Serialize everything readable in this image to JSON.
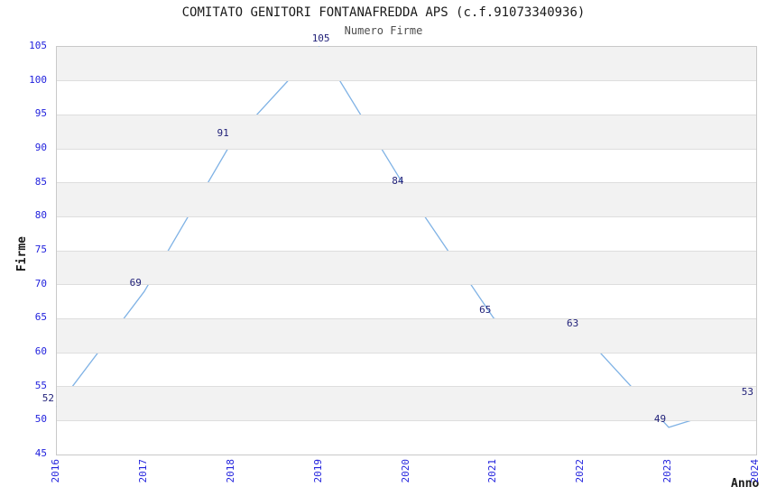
{
  "title": "COMITATO GENITORI FONTANAFREDDA APS (c.f.91073340936)",
  "chart_data": {
    "type": "line",
    "title": "Numero Firme",
    "categories": [
      "2016",
      "2017",
      "2018",
      "2019",
      "2020",
      "2021",
      "2022",
      "2023",
      "2024"
    ],
    "values": [
      52,
      69,
      91,
      105,
      84,
      65,
      63,
      49,
      53
    ],
    "xlabel": "Anno",
    "ylabel": "Firme",
    "ylim": [
      45,
      105
    ],
    "ytick_step": 5,
    "xtick_rotation": 90,
    "grid": "horizontal-stripes-every-5",
    "legend": "none",
    "data_labels": true,
    "colors": {
      "line": "#7fb2e5",
      "tick_label": "#2222dd",
      "data_label": "#1f1f78",
      "stripe": "#f2f2f2",
      "gridline": "#dedede",
      "plot_border": "#c9c9c9",
      "title": "#1a1a1a",
      "subtitle": "#4d4d4d",
      "axis_label": "#1a1a1a",
      "background": "#ffffff"
    }
  }
}
